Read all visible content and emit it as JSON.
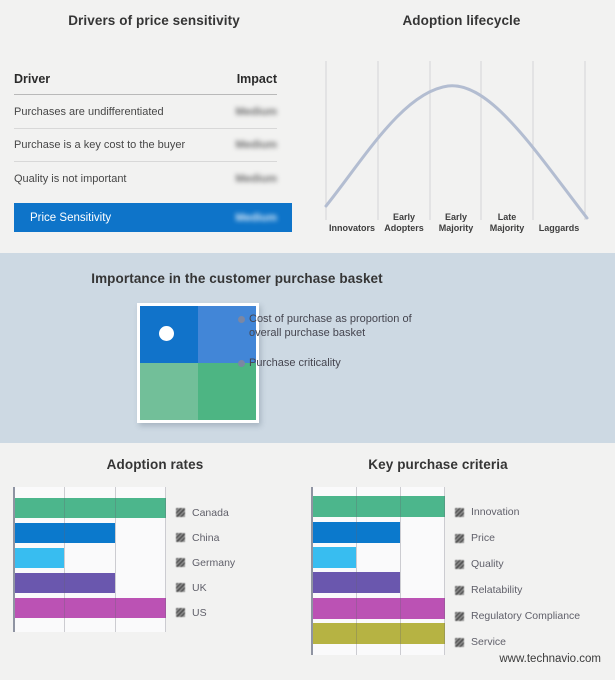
{
  "page": {
    "watermark": "www.technavio.com"
  },
  "drivers": {
    "title": "Drivers of price sensitivity",
    "header": {
      "driver": "Driver",
      "impact": "Impact"
    },
    "rows": [
      {
        "driver": "Purchases are undifferentiated",
        "impact": "Medium"
      },
      {
        "driver": "Purchase is a key cost to the buyer",
        "impact": "Medium"
      },
      {
        "driver": "Quality is not important",
        "impact": "Medium"
      }
    ],
    "highlight": {
      "driver": "Price Sensitivity",
      "impact": "Medium",
      "bg": "#0e74c9"
    }
  },
  "lifecycle": {
    "title": "Adoption lifecycle",
    "stages": [
      "Innovators",
      "Early Adopters",
      "Early Majority",
      "Late Majority",
      "Laggards"
    ]
  },
  "basket": {
    "title": "Importance in the customer purchase basket",
    "bullets": [
      "Cost of purchase as proportion of overall purchase basket",
      "Purchase criticality"
    ],
    "quadrant_colors": {
      "tl": "#1173ca",
      "tr": "#4286d7",
      "bl": "#72bf99",
      "br": "#4db583"
    }
  },
  "chart_data": [
    {
      "id": "adoption-lifecycle",
      "type": "line",
      "title": "Adoption lifecycle",
      "x_stages": [
        "Innovators",
        "Early Adopters",
        "Early Majority",
        "Late Majority",
        "Laggards"
      ],
      "description": "Bell-shaped adoption curve rising from Innovators, peaking at Early Majority, falling to Laggards",
      "curve_color": "#b3bdd1",
      "grid": true,
      "gridline_count": 6
    },
    {
      "id": "adoption-rates",
      "type": "bar",
      "orientation": "horizontal",
      "title": "Adoption rates",
      "categories": [
        "Canada",
        "China",
        "Germany",
        "UK",
        "US"
      ],
      "values": [
        3,
        2,
        1,
        2,
        3
      ],
      "value_max": 3,
      "xlim": [
        0,
        3
      ],
      "grid": true,
      "gridline_count": 4,
      "legend_position": "right",
      "colors": [
        "#4cb68c",
        "#0b79cc",
        "#38bdf0",
        "#6a57ae",
        "#bb52b4"
      ]
    },
    {
      "id": "key-purchase-criteria",
      "type": "bar",
      "orientation": "horizontal",
      "title": "Key purchase criteria",
      "categories": [
        "Innovation",
        "Price",
        "Quality",
        "Relatability",
        "Regulatory Compliance",
        "Service"
      ],
      "values": [
        3,
        2,
        1,
        2,
        3,
        3
      ],
      "value_max": 3,
      "xlim": [
        0,
        3
      ],
      "grid": true,
      "gridline_count": 4,
      "legend_position": "right",
      "colors": [
        "#4cb68c",
        "#0b79cc",
        "#38bdf0",
        "#6a57ae",
        "#bb52b4",
        "#b6b343"
      ]
    }
  ]
}
